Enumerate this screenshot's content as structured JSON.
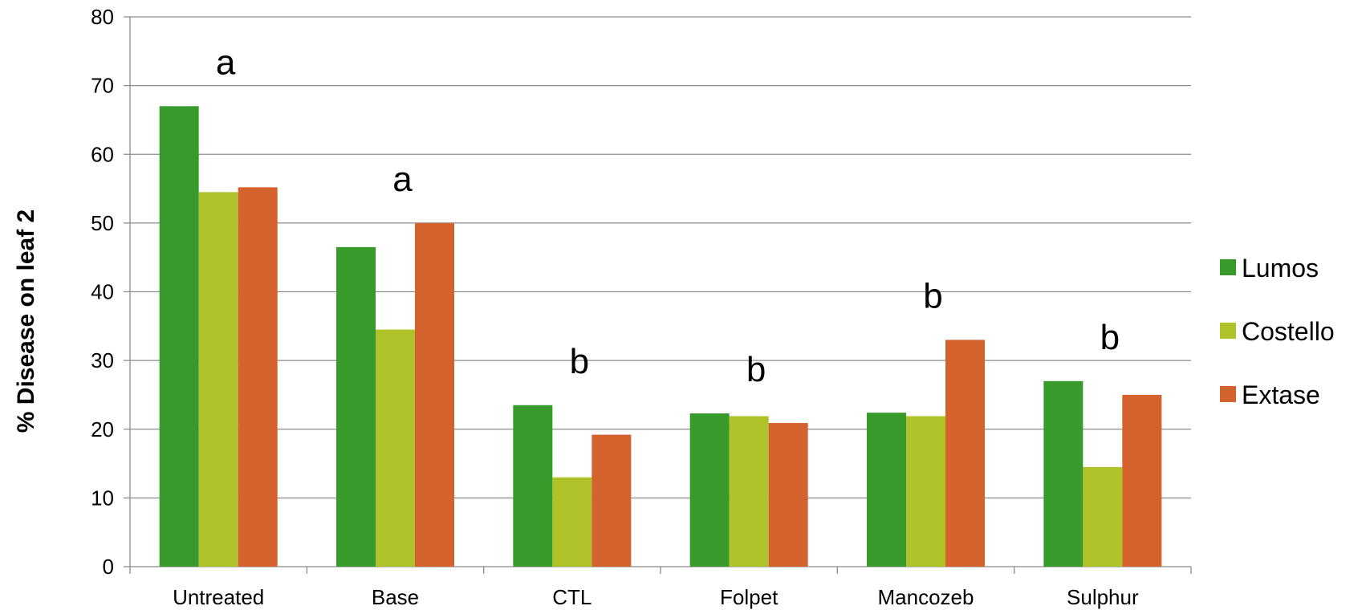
{
  "chart_data": {
    "type": "bar",
    "title": "",
    "xlabel": "",
    "ylabel": "% Disease on leaf 2",
    "ylim": [
      0,
      80
    ],
    "yticks": [
      0,
      10,
      20,
      30,
      40,
      50,
      60,
      70,
      80
    ],
    "grid": true,
    "legend_position": "right",
    "categories": [
      "Untreated",
      "Base",
      "CTL",
      "Folpet",
      "Mancozeb",
      "Sulphur"
    ],
    "series": [
      {
        "name": "Lumos",
        "color": "#379a2b",
        "values": [
          67,
          46.5,
          23.5,
          22.3,
          22.4,
          27
        ]
      },
      {
        "name": "Costello",
        "color": "#b0c22a",
        "values": [
          54.5,
          34.5,
          13,
          21.9,
          21.9,
          14.5
        ]
      },
      {
        "name": "Extase",
        "color": "#d4622d",
        "values": [
          55.2,
          50,
          19.2,
          20.9,
          33,
          25
        ]
      }
    ],
    "annotations": [
      "a",
      "a",
      "b",
      "b",
      "b",
      "b"
    ]
  }
}
